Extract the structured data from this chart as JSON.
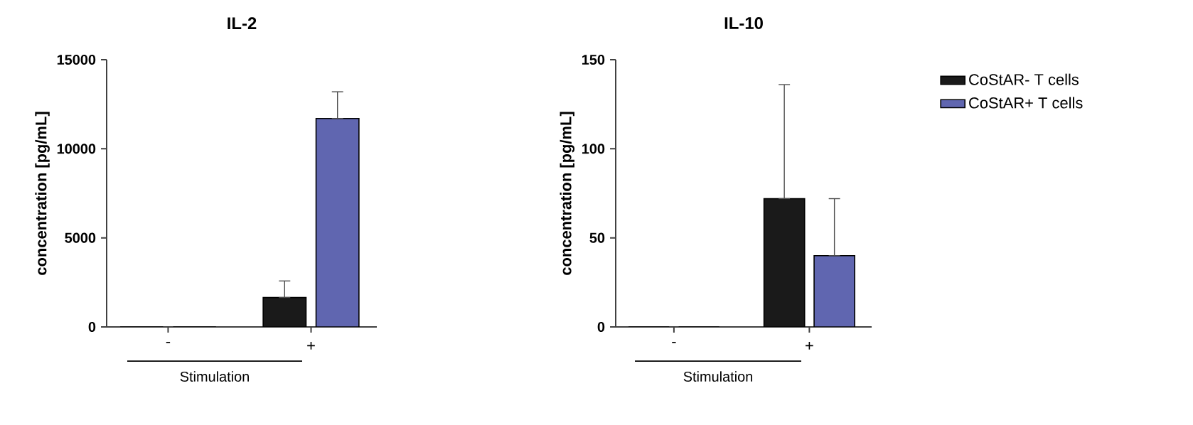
{
  "chart_data": [
    {
      "type": "bar",
      "title": "IL-2",
      "xlabel": "Stimulation",
      "ylabel": "concentration [pg/mL]",
      "categories": [
        "-",
        "+"
      ],
      "ylim": [
        0,
        15000
      ],
      "yticks": [
        0,
        5000,
        10000,
        15000
      ],
      "grid": false,
      "legend": false,
      "series": [
        {
          "color": "#1a1a1a",
          "values": [
            0,
            1650
          ],
          "errors": [
            null,
            [
              1650,
              2580
            ]
          ]
        },
        {
          "color": "#6066b0",
          "values": [
            0,
            11700
          ],
          "errors": [
            null,
            [
              11700,
              13200
            ]
          ]
        }
      ]
    },
    {
      "type": "bar",
      "title": "IL-10",
      "xlabel": "Stimulation",
      "ylabel": "concentration [pg/mL]",
      "categories": [
        "-",
        "+"
      ],
      "ylim": [
        0,
        150
      ],
      "yticks": [
        0,
        50,
        100,
        150
      ],
      "grid": false,
      "legend": "right",
      "series": [
        {
          "name": "CoStAR- T cells",
          "color": "#1a1a1a",
          "values": [
            0,
            72
          ],
          "errors": [
            null,
            [
              72,
              136
            ]
          ]
        },
        {
          "name": "CoStAR+ T cells",
          "color": "#6066b0",
          "values": [
            0,
            40
          ],
          "errors": [
            null,
            [
              40,
              72
            ]
          ]
        }
      ]
    }
  ]
}
